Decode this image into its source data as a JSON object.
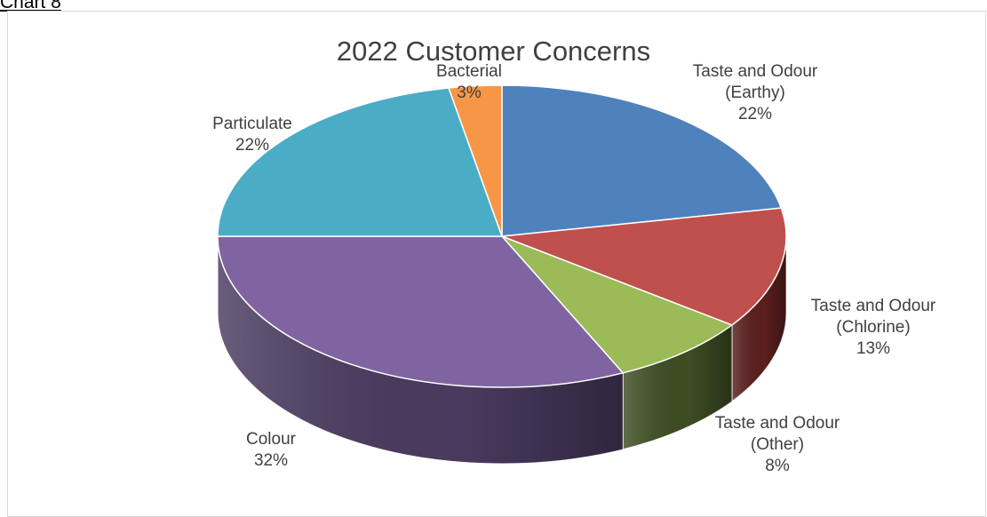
{
  "document": {
    "caption": "Chart 8"
  },
  "chart_data": {
    "type": "pie",
    "title": "2022 Customer Concerns",
    "style": "3d",
    "start_angle_deg": 90,
    "direction": "clockwise",
    "slices": [
      {
        "label": [
          "Taste and Odour",
          "(Earthy)"
        ],
        "value": 22,
        "value_label": "22%",
        "color": "#4f81bd",
        "side_color": "#2c4a6f"
      },
      {
        "label": [
          "Taste and Odour",
          "(Chlorine)"
        ],
        "value": 13,
        "value_label": "13%",
        "color": "#c0504d",
        "side_color": "#5a1f1e"
      },
      {
        "label": [
          "Taste and Odour",
          "(Other)"
        ],
        "value": 8,
        "value_label": "8%",
        "color": "#9bbb59",
        "side_color": "#3e4d22"
      },
      {
        "label": [
          "Colour"
        ],
        "value": 32,
        "value_label": "32%",
        "color": "#8064a2",
        "side_color": "#4a3a5f"
      },
      {
        "label": [
          "Particulate"
        ],
        "value": 22,
        "value_label": "22%",
        "color": "#4bacc6",
        "side_color": "#23606f"
      },
      {
        "label": [
          "Bacterial"
        ],
        "value": 3,
        "value_label": "3%",
        "color": "#f79646",
        "side_color": "#8a4e1c"
      }
    ]
  }
}
